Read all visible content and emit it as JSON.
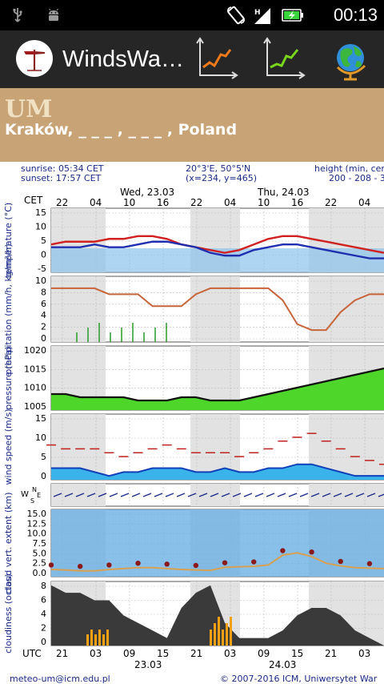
{
  "status_bar": {
    "time": "00:13",
    "icons": [
      "usb-icon",
      "android-debug-icon",
      "rotate-icon",
      "signal-icon",
      "battery-charging-icon"
    ]
  },
  "app": {
    "title": "WindsWa…",
    "icons": [
      "windsock-logo-icon",
      "orange-graph-icon",
      "green-graph-icon",
      "globe-icon"
    ]
  },
  "header": {
    "model": "UM",
    "location": "Kraków, _ _ _ , _ _ _ , Poland"
  },
  "meteogram": {
    "info": {
      "sunrise": "sunrise: 05:34 CET",
      "sunset": "sunset: 17:57 CET",
      "coords": "20°3'E, 50°5'N",
      "grid": "(x=234, y=465)",
      "height_label": "height (min, cen",
      "height_values": "200 - 208 - 3"
    },
    "tz_label": "CET",
    "utc_label": "UTC",
    "days": [
      "Wed, 23.03",
      "Thu, 24.03"
    ],
    "cet_hours": [
      "22",
      "04",
      "10",
      "16",
      "22",
      "04",
      "10",
      "16",
      "22",
      "04"
    ],
    "utc_hours": [
      "21",
      "03",
      "09",
      "15",
      "21",
      "03",
      "09",
      "15",
      "21",
      "03"
    ],
    "utc_dates": [
      "23.03",
      "24.03"
    ],
    "footer_left": "meteo-um@icm.edu.pl",
    "footer_right": "© 2007-2016 ICM, Uniwersytet War",
    "panels": [
      {
        "label": "temperature (°C)",
        "ticks": [
          "15",
          "10",
          "5",
          "0",
          "-5"
        ]
      },
      {
        "label": "precipitation (mm/h, kg/m²/h)",
        "ticks": [
          "10",
          "8",
          "6",
          "4",
          "2",
          "0"
        ]
      },
      {
        "label": "pressure (hPa)",
        "ticks": [
          "1020",
          "1015",
          "1010",
          "1005"
        ]
      },
      {
        "label": "wind speed (m/s)",
        "ticks": [
          "15",
          "10",
          "5",
          "0"
        ]
      },
      {
        "label": "wind direction",
        "ticks": [
          "N",
          "W",
          "E",
          "S"
        ]
      },
      {
        "label": "cloud vert. extent (km)",
        "ticks": [
          "15.0",
          "12.5",
          "10.0",
          "7.5",
          "5.0",
          "2.5",
          "0.0"
        ]
      },
      {
        "label": "cloudiness (octas)",
        "ticks": [
          "8",
          "6",
          "4",
          "2",
          "0"
        ]
      }
    ],
    "series": {
      "temperature_max": [
        3,
        4,
        4,
        4,
        5,
        5,
        6,
        6,
        5,
        3,
        2,
        1,
        0,
        1,
        3,
        5,
        6,
        6,
        5,
        4,
        3,
        2,
        1,
        0
      ],
      "temperature_mean": [
        2,
        2,
        2,
        3,
        2,
        2,
        3,
        4,
        4,
        3,
        2,
        0,
        -1,
        -1,
        1,
        2,
        3,
        3,
        2,
        1,
        0,
        -1,
        -2,
        -2
      ],
      "precipitation_probability": [
        9,
        9,
        9,
        9,
        8,
        8,
        8,
        6,
        6,
        6,
        8,
        9,
        9,
        9,
        9,
        9,
        7,
        3,
        2,
        2,
        5,
        7,
        8,
        8
      ],
      "pressure": [
        1007,
        1007,
        1006,
        1006,
        1006,
        1006,
        1005,
        1005,
        1005,
        1006,
        1006,
        1005,
        1005,
        1005,
        1006,
        1007,
        1008,
        1009,
        1010,
        1011,
        1012,
        1013,
        1014,
        1015
      ],
      "wind_gust": [
        9,
        8,
        8,
        8,
        7,
        6,
        7,
        8,
        9,
        8,
        7,
        7,
        7,
        6,
        7,
        8,
        10,
        11,
        12,
        10,
        8,
        6,
        5,
        4
      ],
      "wind_mean": [
        3,
        3,
        3,
        2,
        1,
        2,
        2,
        3,
        3,
        3,
        2,
        2,
        3,
        2,
        2,
        3,
        3,
        4,
        4,
        3,
        2,
        1,
        1,
        1
      ],
      "cloud_base": [
        1.6,
        1.5,
        1.3,
        1.3,
        1.6,
        1.8,
        2.0,
        2.0,
        1.8,
        1.6,
        1.5,
        1.4,
        2.1,
        2.2,
        2.3,
        2.6,
        4.8,
        5.3,
        4.5,
        3.0,
        2.4,
        2.0,
        1.9,
        1.8
      ],
      "cloudiness": [
        8,
        7,
        7,
        6,
        6,
        4,
        3,
        2,
        1,
        5,
        7,
        8,
        3,
        1,
        1,
        1,
        2,
        4,
        5,
        5,
        4,
        2,
        1,
        0
      ]
    }
  }
}
